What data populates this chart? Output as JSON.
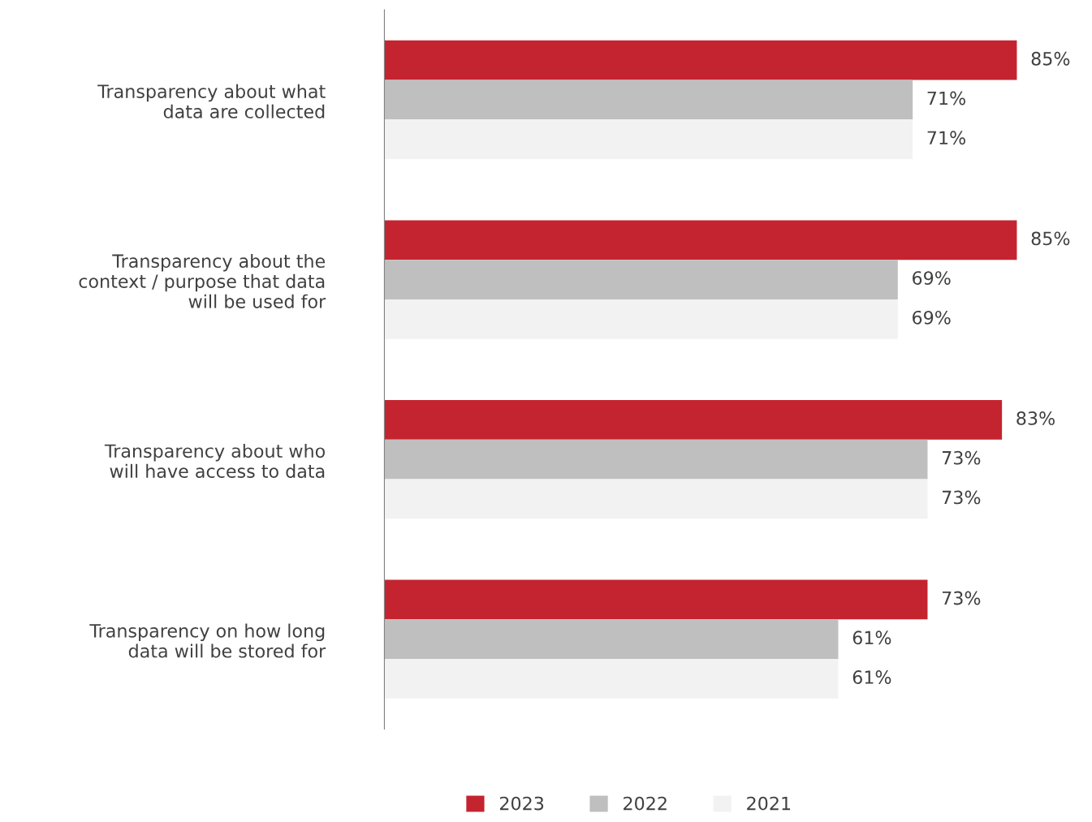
{
  "chart_data": {
    "type": "bar",
    "orientation": "horizontal",
    "legend": "bottom",
    "tick_labels": "y",
    "grid": false,
    "categories": [
      "Transparency about what\ndata are collected",
      "Transparency about the\ncontext / purpose that data\nwill be used for",
      "Transparency about who\nwill have access to data",
      "Transparency on how long\ndata will be stored for"
    ],
    "series": [
      {
        "name": "2023",
        "color": "#c4242f",
        "values": [
          85,
          85,
          83,
          73
        ],
        "value_labels": [
          "85%",
          "85%",
          "83%",
          "73%"
        ]
      },
      {
        "name": "2022",
        "color": "#bfbfbf",
        "values": [
          71,
          69,
          73,
          61
        ],
        "value_labels": [
          "71%",
          "69%",
          "73%",
          "61%"
        ]
      },
      {
        "name": "2021",
        "color": "#f2f2f2",
        "values": [
          71,
          69,
          73,
          61
        ],
        "value_labels": [
          "71%",
          "69%",
          "73%",
          "61%"
        ]
      }
    ]
  }
}
